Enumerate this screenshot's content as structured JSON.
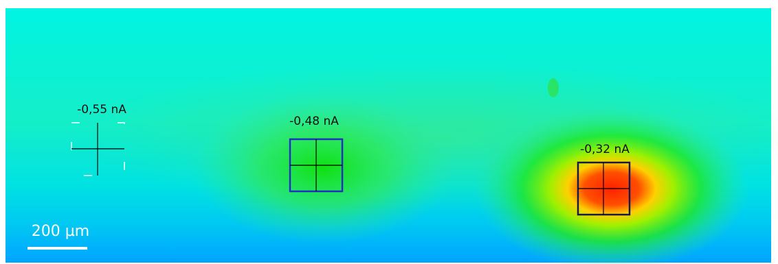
{
  "markers": [
    {
      "label": "-0,55 nA"
    },
    {
      "label": "-0,48 nA"
    },
    {
      "label": "-0,32 nA"
    }
  ],
  "scale_bar": {
    "label": "200 µm"
  }
}
